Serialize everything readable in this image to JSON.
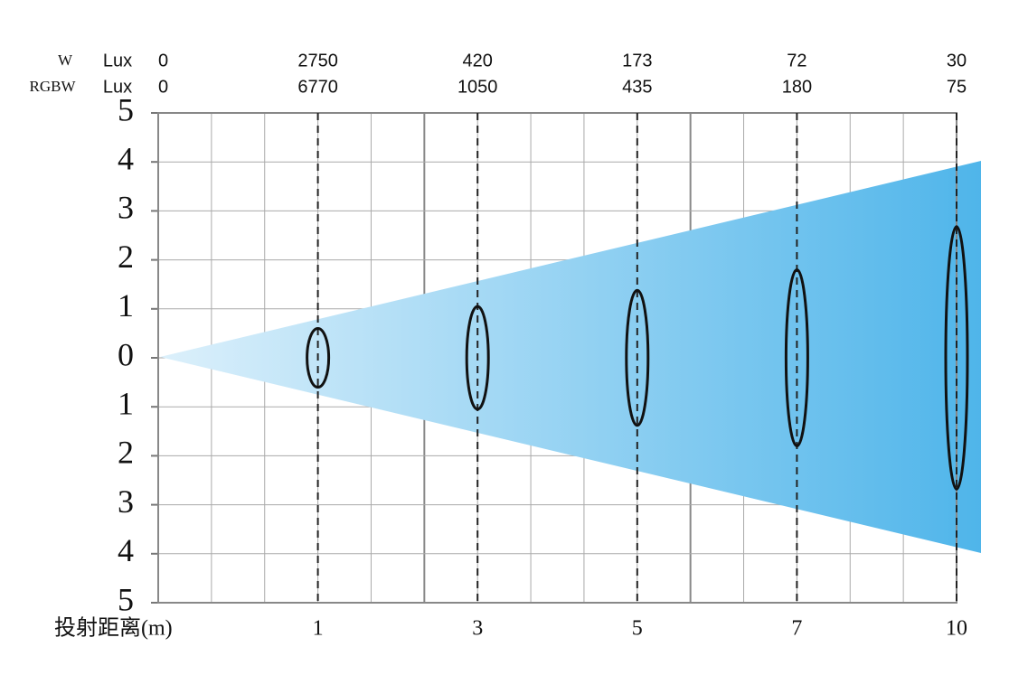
{
  "chart_data": {
    "type": "beam",
    "x_label": "投射距离(m)",
    "categories": [
      null,
      "1",
      "3",
      "5",
      "7",
      "10"
    ],
    "values": [
      0,
      0.6,
      1.05,
      1.38,
      1.8,
      2.68
    ],
    "lux_unit": "Lux",
    "lux_rows": [
      {
        "name": "W",
        "values": [
          0,
          2750,
          420,
          173,
          72,
          30
        ]
      },
      {
        "name": "RGBW",
        "values": [
          0,
          6770,
          1050,
          435,
          180,
          75
        ]
      }
    ],
    "ylim": [
      -5,
      5
    ],
    "yticks": [
      {
        "value": -5,
        "label": "5"
      },
      {
        "value": -4,
        "label": "4"
      },
      {
        "value": -3,
        "label": "3"
      },
      {
        "value": -2,
        "label": "2"
      },
      {
        "value": -1,
        "label": "1"
      },
      0,
      1,
      2,
      3,
      4,
      5
    ],
    "color": "#4fb5ea",
    "grid": true
  }
}
